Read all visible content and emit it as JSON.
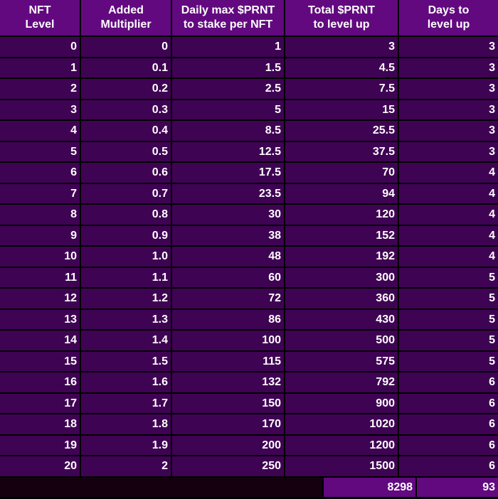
{
  "headers": [
    "NFT\nLevel",
    "Added\nMultiplier",
    "Daily max $PRNT\nto stake per NFT",
    "Total $PRNT\nto level up",
    "Days to\nlevel up"
  ],
  "rows": [
    [
      "0",
      "0",
      "1",
      "3",
      "3"
    ],
    [
      "1",
      "0.1",
      "1.5",
      "4.5",
      "3"
    ],
    [
      "2",
      "0.2",
      "2.5",
      "7.5",
      "3"
    ],
    [
      "3",
      "0.3",
      "5",
      "15",
      "3"
    ],
    [
      "4",
      "0.4",
      "8.5",
      "25.5",
      "3"
    ],
    [
      "5",
      "0.5",
      "12.5",
      "37.5",
      "3"
    ],
    [
      "6",
      "0.6",
      "17.5",
      "70",
      "4"
    ],
    [
      "7",
      "0.7",
      "23.5",
      "94",
      "4"
    ],
    [
      "8",
      "0.8",
      "30",
      "120",
      "4"
    ],
    [
      "9",
      "0.9",
      "38",
      "152",
      "4"
    ],
    [
      "10",
      "1.0",
      "48",
      "192",
      "4"
    ],
    [
      "11",
      "1.1",
      "60",
      "300",
      "5"
    ],
    [
      "12",
      "1.2",
      "72",
      "360",
      "5"
    ],
    [
      "13",
      "1.3",
      "86",
      "430",
      "5"
    ],
    [
      "14",
      "1.4",
      "100",
      "500",
      "5"
    ],
    [
      "15",
      "1.5",
      "115",
      "575",
      "5"
    ],
    [
      "16",
      "1.6",
      "132",
      "792",
      "6"
    ],
    [
      "17",
      "1.7",
      "150",
      "900",
      "6"
    ],
    [
      "18",
      "1.8",
      "170",
      "1020",
      "6"
    ],
    [
      "19",
      "1.9",
      "200",
      "1200",
      "6"
    ],
    [
      "20",
      "2",
      "250",
      "1500",
      "6"
    ]
  ],
  "totals": {
    "total_prnt": "8298",
    "total_days": "93"
  },
  "colors": {
    "header_bg": "#620980",
    "row_bg": "#3f0353",
    "grid": "#000000"
  }
}
